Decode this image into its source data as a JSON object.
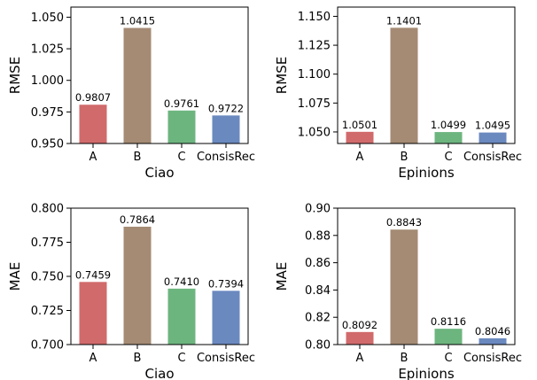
{
  "chart_data": [
    {
      "type": "bar",
      "categories": [
        "A",
        "B",
        "C",
        "ConsisRec"
      ],
      "values": [
        0.9807,
        1.0415,
        0.9761,
        0.9722
      ],
      "value_labels": [
        "0.9807",
        "1.0415",
        "0.9761",
        "0.9722"
      ],
      "colors": [
        "#d16a6b",
        "#a58b74",
        "#6db57f",
        "#6a89bf"
      ],
      "xlabel": "Ciao",
      "ylabel": "RMSE",
      "ylim": [
        0.95,
        1.058
      ],
      "yticks": [
        0.95,
        0.975,
        1.0,
        1.025,
        1.05
      ],
      "ytick_labels": [
        "0.950",
        "0.975",
        "1.000",
        "1.025",
        "1.050"
      ]
    },
    {
      "type": "bar",
      "categories": [
        "A",
        "B",
        "C",
        "ConsisRec"
      ],
      "values": [
        1.0501,
        1.1401,
        1.0499,
        1.0495
      ],
      "value_labels": [
        "1.0501",
        "1.1401",
        "1.0499",
        "1.0495"
      ],
      "colors": [
        "#d16a6b",
        "#a58b74",
        "#6db57f",
        "#6a89bf"
      ],
      "xlabel": "Epinions",
      "ylabel": "RMSE",
      "ylim": [
        1.04,
        1.158
      ],
      "yticks": [
        1.05,
        1.075,
        1.1,
        1.125,
        1.15
      ],
      "ytick_labels": [
        "1.050",
        "1.075",
        "1.100",
        "1.125",
        "1.150"
      ]
    },
    {
      "type": "bar",
      "categories": [
        "A",
        "B",
        "C",
        "ConsisRec"
      ],
      "values": [
        0.7459,
        0.7864,
        0.741,
        0.7394
      ],
      "value_labels": [
        "0.7459",
        "0.7864",
        "0.7410",
        "0.7394"
      ],
      "colors": [
        "#d16a6b",
        "#a58b74",
        "#6db57f",
        "#6a89bf"
      ],
      "xlabel": "Ciao",
      "ylabel": "MAE",
      "ylim": [
        0.7,
        0.8
      ],
      "yticks": [
        0.7,
        0.725,
        0.75,
        0.775,
        0.8
      ],
      "ytick_labels": [
        "0.700",
        "0.725",
        "0.750",
        "0.775",
        "0.800"
      ]
    },
    {
      "type": "bar",
      "categories": [
        "A",
        "B",
        "C",
        "ConsisRec"
      ],
      "values": [
        0.8092,
        0.8843,
        0.8116,
        0.8046
      ],
      "value_labels": [
        "0.8092",
        "0.8843",
        "0.8116",
        "0.8046"
      ],
      "colors": [
        "#d16a6b",
        "#a58b74",
        "#6db57f",
        "#6a89bf"
      ],
      "xlabel": "Epinions",
      "ylabel": "MAE",
      "ylim": [
        0.8,
        0.9
      ],
      "yticks": [
        0.8,
        0.82,
        0.84,
        0.86,
        0.88,
        0.9
      ],
      "ytick_labels": [
        "0.80",
        "0.82",
        "0.84",
        "0.86",
        "0.88",
        "0.90"
      ]
    }
  ]
}
